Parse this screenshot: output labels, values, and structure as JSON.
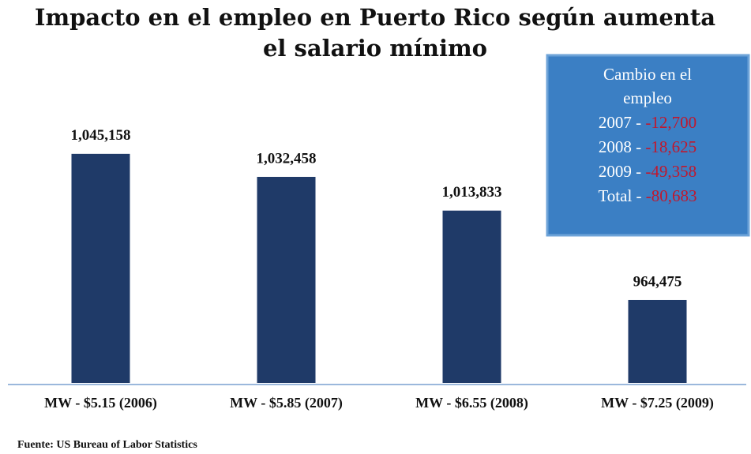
{
  "chart_data": {
    "type": "bar",
    "title": [
      "Impacto en el empleo en Puerto Rico según aumenta",
      "el salario mínimo"
    ],
    "categories": [
      "MW - $5.15 (2006)",
      "MW - $5.85 (2007)",
      "MW - $6.55 (2008)",
      "MW - $7.25 (2009)"
    ],
    "values": [
      1045158,
      1032458,
      1013833,
      964475
    ],
    "value_labels": [
      "1,045,158",
      "1,032,458",
      "1,013,833",
      "964,475"
    ],
    "color": "#1f3a68",
    "ylim": [
      918700,
      1086500
    ],
    "annotation": {
      "title": "Cambio en el empleo",
      "rows": [
        {
          "label": "2007 - ",
          "value": "-12,700"
        },
        {
          "label": "2008 - ",
          "value": "-18,625"
        },
        {
          "label": "2009 - ",
          "value": "-49,358"
        },
        {
          "label": "Total - ",
          "value": "-80,683"
        }
      ]
    },
    "source": "Fuente: US Bureau of Labor Statistics"
  }
}
